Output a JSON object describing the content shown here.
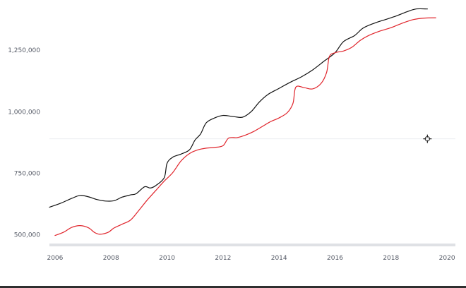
{
  "chart_data": {
    "type": "line",
    "title": "",
    "xlabel": "",
    "ylabel": "",
    "x_ticks": [
      "2006",
      "2008",
      "2010",
      "2012",
      "2014",
      "2016",
      "2018",
      "2020"
    ],
    "y_ticks": [
      "500,000",
      "750,000",
      "1,000,000",
      "1,250,000"
    ],
    "xlim": [
      2005.8,
      2020.3
    ],
    "ylim": [
      470000,
      1420000
    ],
    "grid": false,
    "colors": {
      "black_series": "#111111",
      "red_series": "#e0242b",
      "axis_baseline": "#dfe1e5",
      "crosshair_line": "#eceef1"
    },
    "series": [
      {
        "color": "#111111",
        "points": [
          [
            2005.8,
            612000
          ],
          [
            2006.2,
            628000
          ],
          [
            2006.6,
            648000
          ],
          [
            2006.9,
            660000
          ],
          [
            2007.2,
            654000
          ],
          [
            2007.5,
            643000
          ],
          [
            2007.8,
            637000
          ],
          [
            2008.1,
            638000
          ],
          [
            2008.4,
            653000
          ],
          [
            2008.7,
            662000
          ],
          [
            2008.9,
            667000
          ],
          [
            2009.2,
            695000
          ],
          [
            2009.4,
            690000
          ],
          [
            2009.6,
            700000
          ],
          [
            2009.9,
            732000
          ],
          [
            2010.0,
            790000
          ],
          [
            2010.2,
            815000
          ],
          [
            2010.5,
            828000
          ],
          [
            2010.8,
            845000
          ],
          [
            2011.0,
            885000
          ],
          [
            2011.2,
            910000
          ],
          [
            2011.4,
            955000
          ],
          [
            2011.7,
            975000
          ],
          [
            2012.0,
            985000
          ],
          [
            2012.4,
            980000
          ],
          [
            2012.7,
            978000
          ],
          [
            2013.0,
            1000000
          ],
          [
            2013.3,
            1040000
          ],
          [
            2013.6,
            1070000
          ],
          [
            2014.0,
            1095000
          ],
          [
            2014.4,
            1120000
          ],
          [
            2014.8,
            1142000
          ],
          [
            2015.2,
            1170000
          ],
          [
            2015.6,
            1205000
          ],
          [
            2016.0,
            1240000
          ],
          [
            2016.3,
            1285000
          ],
          [
            2016.7,
            1310000
          ],
          [
            2017.0,
            1340000
          ],
          [
            2017.4,
            1360000
          ],
          [
            2017.8,
            1375000
          ],
          [
            2018.2,
            1390000
          ],
          [
            2018.6,
            1408000
          ],
          [
            2018.9,
            1418000
          ],
          [
            2019.3,
            1418000
          ]
        ]
      },
      {
        "color": "#e0242b",
        "points": [
          [
            2006.0,
            497000
          ],
          [
            2006.3,
            510000
          ],
          [
            2006.6,
            530000
          ],
          [
            2006.9,
            537000
          ],
          [
            2007.2,
            528000
          ],
          [
            2007.4,
            510000
          ],
          [
            2007.6,
            502000
          ],
          [
            2007.9,
            510000
          ],
          [
            2008.1,
            527000
          ],
          [
            2008.4,
            543000
          ],
          [
            2008.7,
            560000
          ],
          [
            2009.0,
            600000
          ],
          [
            2009.3,
            642000
          ],
          [
            2009.6,
            680000
          ],
          [
            2009.9,
            718000
          ],
          [
            2010.2,
            752000
          ],
          [
            2010.5,
            800000
          ],
          [
            2010.8,
            830000
          ],
          [
            2011.1,
            845000
          ],
          [
            2011.4,
            852000
          ],
          [
            2011.7,
            855000
          ],
          [
            2012.0,
            862000
          ],
          [
            2012.2,
            893000
          ],
          [
            2012.5,
            895000
          ],
          [
            2012.8,
            905000
          ],
          [
            2013.1,
            920000
          ],
          [
            2013.4,
            940000
          ],
          [
            2013.7,
            960000
          ],
          [
            2014.0,
            975000
          ],
          [
            2014.3,
            997000
          ],
          [
            2014.5,
            1035000
          ],
          [
            2014.6,
            1100000
          ],
          [
            2014.9,
            1098000
          ],
          [
            2015.2,
            1093000
          ],
          [
            2015.5,
            1115000
          ],
          [
            2015.7,
            1160000
          ],
          [
            2015.8,
            1225000
          ],
          [
            2016.0,
            1240000
          ],
          [
            2016.3,
            1247000
          ],
          [
            2016.6,
            1262000
          ],
          [
            2016.9,
            1290000
          ],
          [
            2017.2,
            1310000
          ],
          [
            2017.6,
            1328000
          ],
          [
            2018.0,
            1342000
          ],
          [
            2018.4,
            1360000
          ],
          [
            2018.8,
            1375000
          ],
          [
            2019.2,
            1381000
          ],
          [
            2019.6,
            1382000
          ]
        ]
      }
    ],
    "crosshair": {
      "icon": "crosshair-cursor-icon",
      "x": 2019.3,
      "y": 890000
    }
  }
}
